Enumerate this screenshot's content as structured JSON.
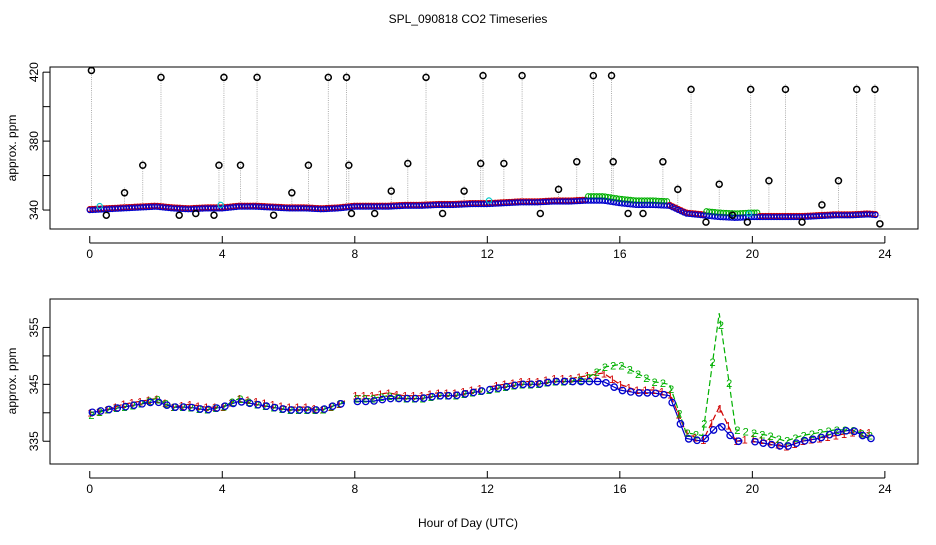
{
  "figure": {
    "title": "SPL_090818  CO2 Timeseries",
    "xlabel": "Hour of Day (UTC)"
  },
  "colors": {
    "series1": "#d00000",
    "series2": "#00b000",
    "series3": "#0000cc",
    "cyan": "#00c8c8",
    "spikes": "#000000",
    "dashed": "#888888"
  },
  "chart_data": [
    {
      "type": "scatter",
      "ylabel": "approx. ppm",
      "xlim": [
        -1.2,
        25
      ],
      "ylim": [
        329,
        423
      ],
      "x_ticks": [
        0,
        4,
        8,
        12,
        16,
        20,
        24
      ],
      "x_tick_labels": [
        "0",
        "4",
        "8",
        "12",
        "16",
        "20",
        "24"
      ],
      "y_ticks": [
        340,
        360,
        380,
        400,
        420
      ],
      "y_tick_labels": [
        "340",
        "",
        "380",
        "",
        "420"
      ],
      "baseline": {
        "hours": [
          0,
          0.5,
          1,
          1.5,
          2,
          2.5,
          3,
          3.5,
          4,
          4.5,
          5,
          5.5,
          6,
          6.5,
          7,
          7.5,
          8,
          8.5,
          9,
          9.5,
          10,
          10.5,
          11,
          11.5,
          12,
          12.5,
          13,
          13.5,
          14,
          14.5,
          15,
          15.5,
          16,
          16.5,
          17,
          17.5,
          18,
          18.5,
          19,
          19.5,
          20,
          20.5,
          21,
          21.5,
          22,
          22.5,
          23,
          23.5,
          23.8
        ],
        "ppm": [
          340,
          340.5,
          341,
          341.5,
          342,
          341,
          340.5,
          341,
          341,
          342,
          342,
          341.5,
          341,
          341,
          340.5,
          341,
          342,
          342,
          342,
          342.5,
          342.5,
          343,
          343,
          343.5,
          343.5,
          344,
          344.5,
          344.5,
          345,
          345,
          345.5,
          345.5,
          344,
          343,
          343,
          342.5,
          338,
          337,
          336,
          335.5,
          336,
          336,
          336,
          336,
          336.5,
          337,
          337,
          337.5,
          337
        ]
      },
      "spikes": {
        "hours": [
          0.05,
          0.5,
          1.05,
          1.6,
          2.15,
          2.7,
          3.2,
          3.75,
          3.9,
          4.05,
          4.55,
          5.05,
          5.55,
          6.1,
          6.6,
          7.2,
          7.75,
          7.82,
          7.9,
          8.6,
          9.1,
          9.6,
          10.15,
          10.65,
          11.3,
          11.8,
          11.87,
          12.5,
          13.05,
          13.6,
          14.15,
          14.7,
          15.2,
          15.75,
          15.8,
          16.25,
          16.7,
          17.3,
          17.75,
          18.15,
          18.6,
          19.0,
          19.4,
          19.85,
          19.95,
          20.5,
          21.0,
          21.5,
          22.1,
          22.6,
          23.15,
          23.7,
          23.85
        ],
        "ppm": [
          421,
          337,
          350,
          366,
          417,
          337,
          338,
          337,
          366,
          417,
          366,
          417,
          337,
          350,
          366,
          417,
          417,
          366,
          338,
          338,
          351,
          367,
          417,
          338,
          351,
          367,
          418,
          367,
          418,
          338,
          352,
          368,
          418,
          418,
          368,
          338,
          338,
          368,
          352,
          410,
          333,
          355,
          337,
          333,
          410,
          357,
          410,
          333,
          343,
          357,
          410,
          410,
          332
        ]
      }
    },
    {
      "type": "line",
      "ylabel": "approx. ppm",
      "xlim": [
        -1.2,
        25
      ],
      "ylim": [
        331,
        360
      ],
      "x_ticks": [
        0,
        4,
        8,
        12,
        16,
        20,
        24
      ],
      "x_tick_labels": [
        "0",
        "4",
        "8",
        "12",
        "16",
        "20",
        "24"
      ],
      "y_ticks": [
        335,
        340,
        345,
        350,
        355
      ],
      "y_tick_labels": [
        "335",
        "",
        "345",
        "",
        "355"
      ],
      "series": [
        {
          "name": "1",
          "marker": "1",
          "hours": [
            0,
            0.5,
            1,
            1.5,
            2,
            2.5,
            3,
            3.5,
            4,
            4.5,
            5,
            5.5,
            6,
            6.5,
            7,
            7.5,
            8,
            8.5,
            9,
            9.5,
            10,
            10.5,
            11,
            11.5,
            12,
            12.5,
            13,
            13.5,
            14,
            14.5,
            15,
            15.5,
            16,
            16.5,
            17,
            17.5,
            18,
            18.5,
            19,
            19.5,
            20,
            20.5,
            21,
            21.5,
            22,
            22.5,
            23,
            23.5
          ],
          "ppm": [
            340,
            340.5,
            341.5,
            342,
            342.5,
            341,
            341.5,
            341,
            341,
            342.5,
            342,
            341.5,
            341,
            341,
            340.5,
            341.5,
            343,
            343,
            343.5,
            343,
            343,
            343.5,
            343.5,
            344,
            344.5,
            345,
            345.5,
            345.5,
            346,
            346,
            346.5,
            347,
            345,
            344,
            344,
            343.5,
            336.5,
            335,
            341,
            335,
            335.5,
            335,
            334,
            335,
            335.5,
            336,
            336.5,
            336.5
          ]
        },
        {
          "name": "2",
          "marker": "2",
          "hours": [
            0,
            0.5,
            1,
            1.5,
            2,
            2.5,
            3,
            3.5,
            4,
            4.5,
            5,
            5.5,
            6,
            6.5,
            7,
            7.5,
            8,
            8.5,
            9,
            9.5,
            10,
            10.5,
            11,
            11.5,
            12,
            12.5,
            13,
            13.5,
            14,
            14.5,
            15,
            15.5,
            16,
            16.5,
            17,
            17.5,
            18,
            18.5,
            19,
            19.5,
            20,
            20.5,
            21,
            21.5,
            22,
            22.5,
            23,
            23.5
          ],
          "ppm": [
            339.5,
            340.5,
            341,
            341.5,
            342.5,
            341,
            341,
            340.5,
            341,
            342.5,
            341.5,
            341,
            340.5,
            340.5,
            340.5,
            341.5,
            342.5,
            342.5,
            343,
            342.5,
            342.5,
            343,
            343,
            343.5,
            344,
            344.5,
            345,
            345,
            345.5,
            345.5,
            346,
            348,
            348.5,
            347,
            345.5,
            345,
            336.5,
            336,
            357.5,
            337,
            336.5,
            336,
            335,
            336,
            336.5,
            337,
            337,
            336
          ]
        },
        {
          "name": "3",
          "marker": "3",
          "hours": [
            0,
            0.5,
            1,
            1.5,
            2,
            2.5,
            3,
            3.5,
            4,
            4.5,
            5,
            5.5,
            6,
            6.5,
            7,
            7.5,
            8,
            8.5,
            9,
            9.5,
            10,
            10.5,
            11,
            11.5,
            12,
            12.5,
            13,
            13.5,
            14,
            14.5,
            15,
            15.5,
            16,
            16.5,
            17,
            17.5,
            18,
            18.5,
            19,
            19.5,
            20,
            20.5,
            21,
            21.5,
            22,
            22.5,
            23,
            23.5
          ],
          "ppm": [
            340,
            340.5,
            341,
            341.5,
            342,
            341,
            341,
            340.5,
            341,
            342,
            341.5,
            341,
            340.5,
            340.5,
            340.5,
            341.5,
            342,
            342,
            342.5,
            342.5,
            342.5,
            343,
            343,
            343.5,
            344,
            344.5,
            345,
            345,
            345.5,
            345.5,
            345.5,
            345.5,
            344,
            343.5,
            343.5,
            343,
            335.5,
            335,
            338,
            335,
            335,
            334.5,
            334,
            335,
            335.5,
            336.5,
            337,
            335.5
          ]
        }
      ]
    }
  ]
}
